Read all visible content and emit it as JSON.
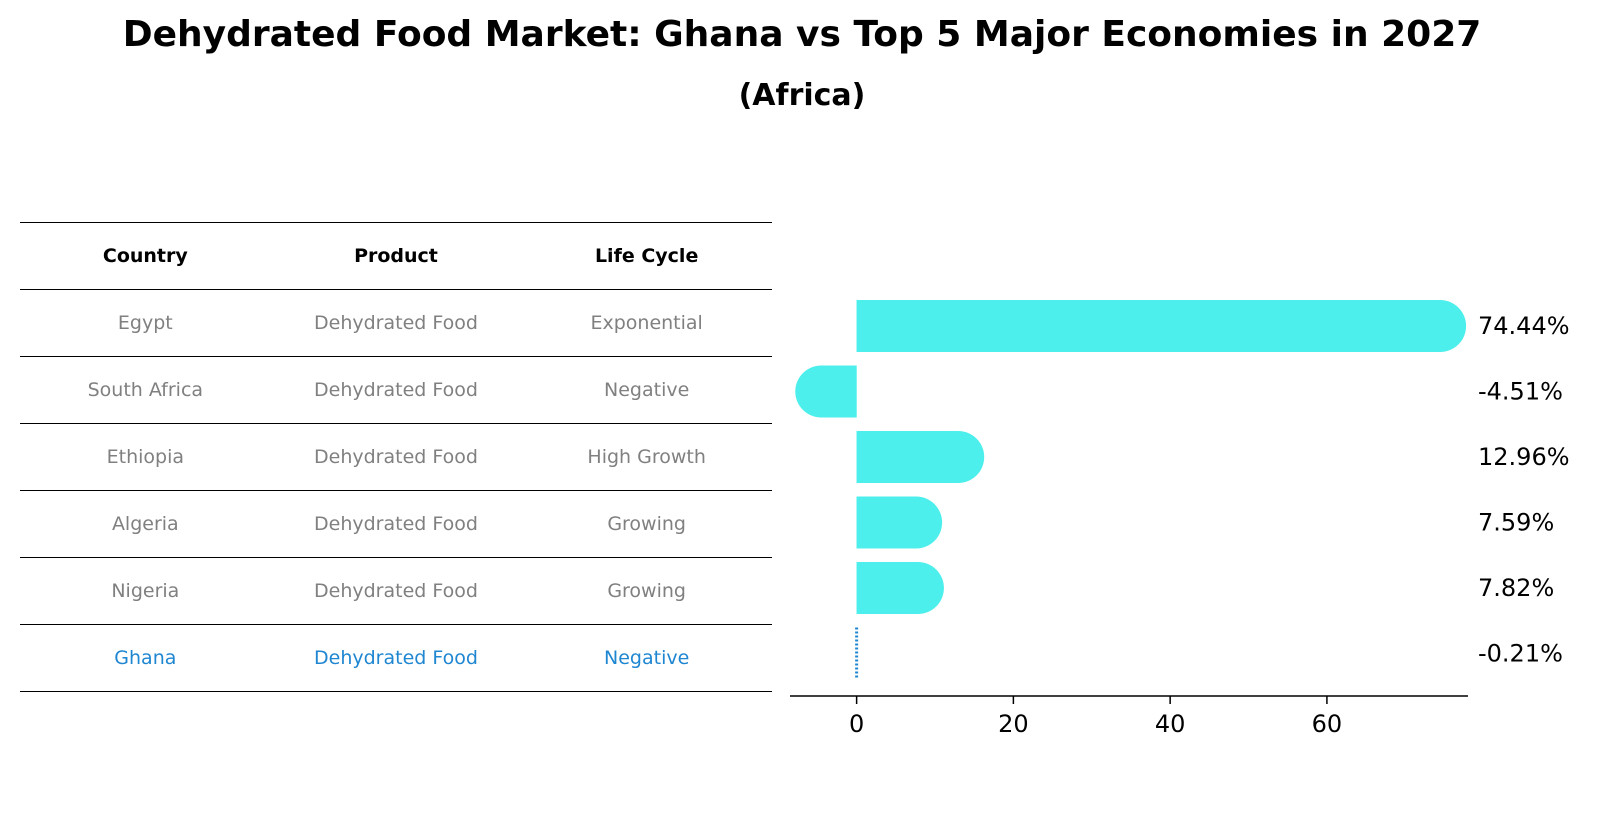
{
  "title": "Dehydrated Food Market: Ghana vs Top 5 Major Economies in 2027",
  "subtitle": "(Africa)",
  "table": {
    "headers": [
      "Country",
      "Product",
      "Life Cycle"
    ],
    "rows": [
      {
        "country": "Egypt",
        "product": "Dehydrated Food",
        "life_cycle": "Exponential"
      },
      {
        "country": "South Africa",
        "product": "Dehydrated Food",
        "life_cycle": "Negative"
      },
      {
        "country": "Ethiopia",
        "product": "Dehydrated Food",
        "life_cycle": "High Growth"
      },
      {
        "country": "Algeria",
        "product": "Dehydrated Food",
        "life_cycle": "Growing"
      },
      {
        "country": "Nigeria",
        "product": "Dehydrated Food",
        "life_cycle": "Growing"
      },
      {
        "country": "Ghana",
        "product": "Dehydrated Food",
        "life_cycle": "Negative",
        "highlight": true
      }
    ]
  },
  "chart_data": {
    "type": "bar",
    "orientation": "horizontal",
    "categories": [
      "Egypt",
      "South Africa",
      "Ethiopia",
      "Algeria",
      "Nigeria",
      "Ghana"
    ],
    "values": [
      74.44,
      -4.51,
      12.96,
      7.59,
      7.82,
      -0.21
    ],
    "value_labels": [
      "74.44%",
      "-4.51%",
      "12.96%",
      "7.59%",
      "7.82%",
      "-0.21%"
    ],
    "xlim": [
      -8.5,
      78
    ],
    "xticks": [
      0,
      20,
      40,
      60
    ],
    "bar_color": "#4cefeb",
    "highlight_color": "#1f86d1",
    "grid": false
  }
}
